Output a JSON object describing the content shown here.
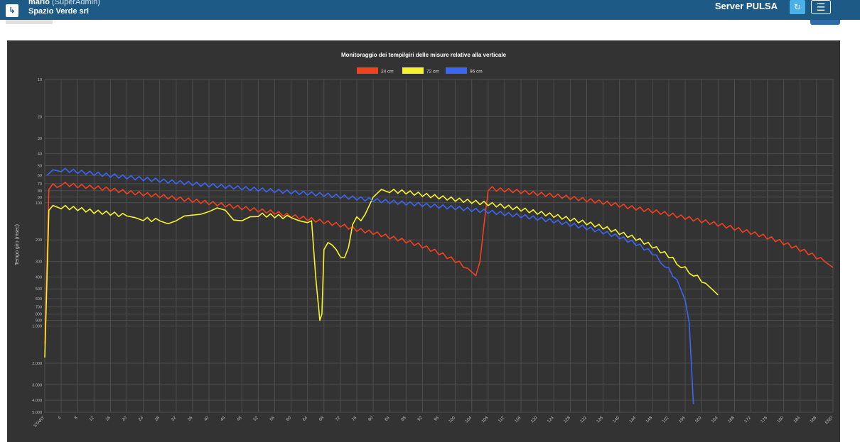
{
  "header": {
    "user_name": "mario",
    "user_role": "(SuperAdmin)",
    "company": "Spazio Verde srl",
    "server_label": "Server PULSA",
    "logout_icon": "logout-icon",
    "refresh_icon": "refresh-icon",
    "menu_icon": "hamburger-menu-icon",
    "bar_color": "#1e5a86",
    "accent_color": "#49b0e8"
  },
  "chart_data": {
    "type": "line",
    "title": "Monitoraggio dei tempi/giri delle misure relative alla verticale",
    "ylabel": "Tempo giro (msec)",
    "xlabel": "",
    "y_scale": "log",
    "y_reversed": true,
    "ylim": [
      10,
      5000
    ],
    "grid": true,
    "legend_position": "top-center",
    "y_ticks": [
      10,
      20,
      30,
      40,
      50,
      60,
      70,
      80,
      90,
      100,
      200,
      300,
      400,
      500,
      600,
      700,
      800,
      900,
      1000,
      2000,
      3000,
      4000,
      5000
    ],
    "y_tick_labels": [
      "10",
      "20",
      "30",
      "40",
      "50",
      "60",
      "70",
      "80",
      "90",
      "100",
      "200",
      "300",
      "400",
      "500",
      "600",
      "700",
      "800",
      "900",
      "1.000",
      "2.000",
      "3.000",
      "4.000",
      "5.000"
    ],
    "x_tick_labels": [
      "START",
      "4",
      "8",
      "12",
      "16",
      "20",
      "24",
      "28",
      "32",
      "36",
      "40",
      "44",
      "48",
      "52",
      "56",
      "60",
      "64",
      "68",
      "72",
      "76",
      "80",
      "84",
      "88",
      "92",
      "96",
      "100",
      "104",
      "108",
      "112",
      "116",
      "120",
      "124",
      "128",
      "132",
      "136",
      "140",
      "144",
      "148",
      "152",
      "156",
      "160",
      "164",
      "168",
      "172",
      "176",
      "180",
      "184",
      "188",
      "END"
    ],
    "xlim": [
      0,
      192
    ],
    "series": [
      {
        "name": "24 cm",
        "color": "#f0421e",
        "points": [
          [
            0,
            1400
          ],
          [
            1,
            78
          ],
          [
            2,
            70
          ],
          [
            3,
            75
          ],
          [
            4,
            70
          ],
          [
            8,
            73
          ],
          [
            12,
            75
          ],
          [
            16,
            78
          ],
          [
            20,
            82
          ],
          [
            24,
            85
          ],
          [
            28,
            88
          ],
          [
            32,
            92
          ],
          [
            36,
            96
          ],
          [
            40,
            100
          ],
          [
            44,
            105
          ],
          [
            48,
            110
          ],
          [
            52,
            115
          ],
          [
            56,
            120
          ],
          [
            60,
            128
          ],
          [
            64,
            135
          ],
          [
            68,
            143
          ],
          [
            72,
            152
          ],
          [
            76,
            165
          ],
          [
            80,
            175
          ],
          [
            84,
            190
          ],
          [
            88,
            205
          ],
          [
            92,
            225
          ],
          [
            96,
            255
          ],
          [
            100,
            295
          ],
          [
            103,
            340
          ],
          [
            105,
            390
          ],
          [
            106,
            300
          ],
          [
            107,
            150
          ],
          [
            108,
            80
          ],
          [
            109,
            74
          ],
          [
            110,
            78
          ],
          [
            114,
            80
          ],
          [
            118,
            83
          ],
          [
            122,
            86
          ],
          [
            126,
            89
          ],
          [
            130,
            93
          ],
          [
            134,
            97
          ],
          [
            138,
            102
          ],
          [
            142,
            108
          ],
          [
            146,
            114
          ],
          [
            150,
            120
          ],
          [
            154,
            128
          ],
          [
            158,
            136
          ],
          [
            162,
            145
          ],
          [
            166,
            155
          ],
          [
            170,
            168
          ],
          [
            174,
            182
          ],
          [
            178,
            200
          ],
          [
            182,
            225
          ],
          [
            186,
            255
          ],
          [
            190,
            300
          ],
          [
            192,
            335
          ]
        ]
      },
      {
        "name": "72 cm",
        "color": "#f5f22e",
        "points": [
          [
            0,
            1800
          ],
          [
            1,
            115
          ],
          [
            2,
            105
          ],
          [
            4,
            108
          ],
          [
            8,
            112
          ],
          [
            12,
            118
          ],
          [
            16,
            122
          ],
          [
            20,
            128
          ],
          [
            22,
            132
          ],
          [
            24,
            135
          ],
          [
            28,
            140
          ],
          [
            30,
            148
          ],
          [
            32,
            140
          ],
          [
            34,
            128
          ],
          [
            36,
            126
          ],
          [
            38,
            124
          ],
          [
            40,
            118
          ],
          [
            42,
            110
          ],
          [
            44,
            115
          ],
          [
            46,
            138
          ],
          [
            48,
            140
          ],
          [
            50,
            130
          ],
          [
            52,
            125
          ],
          [
            56,
            128
          ],
          [
            60,
            132
          ],
          [
            62,
            140
          ],
          [
            64,
            145
          ],
          [
            65,
            140
          ],
          [
            66,
            400
          ],
          [
            67,
            900
          ],
          [
            67.5,
            800
          ],
          [
            68,
            240
          ],
          [
            69,
            210
          ],
          [
            70,
            220
          ],
          [
            71,
            240
          ],
          [
            72,
            275
          ],
          [
            73,
            280
          ],
          [
            74,
            230
          ],
          [
            75,
            150
          ],
          [
            76,
            130
          ],
          [
            77,
            140
          ],
          [
            78,
            125
          ],
          [
            80,
            90
          ],
          [
            82,
            78
          ],
          [
            84,
            80
          ],
          [
            88,
            82
          ],
          [
            92,
            86
          ],
          [
            96,
            90
          ],
          [
            100,
            94
          ],
          [
            104,
            98
          ],
          [
            108,
            102
          ],
          [
            112,
            107
          ],
          [
            116,
            113
          ],
          [
            120,
            120
          ],
          [
            124,
            127
          ],
          [
            128,
            136
          ],
          [
            132,
            146
          ],
          [
            136,
            158
          ],
          [
            140,
            175
          ],
          [
            144,
            195
          ],
          [
            148,
            225
          ],
          [
            152,
            270
          ],
          [
            155,
            325
          ],
          [
            158,
            380
          ],
          [
            161,
            450
          ],
          [
            163,
            520
          ],
          [
            164,
            560
          ]
        ]
      },
      {
        "name": "96 cm",
        "color": "#3a66f2",
        "points": [
          [
            0.5,
            60
          ],
          [
            1,
            58
          ],
          [
            2,
            54
          ],
          [
            4,
            54
          ],
          [
            8,
            56
          ],
          [
            12,
            58
          ],
          [
            16,
            60
          ],
          [
            20,
            62
          ],
          [
            24,
            64
          ],
          [
            28,
            66
          ],
          [
            32,
            68
          ],
          [
            36,
            70
          ],
          [
            40,
            72
          ],
          [
            44,
            74
          ],
          [
            48,
            76
          ],
          [
            52,
            78
          ],
          [
            56,
            80
          ],
          [
            60,
            82
          ],
          [
            64,
            84
          ],
          [
            68,
            86
          ],
          [
            72,
            89
          ],
          [
            76,
            92
          ],
          [
            80,
            95
          ],
          [
            84,
            98
          ],
          [
            88,
            101
          ],
          [
            92,
            104
          ],
          [
            96,
            107
          ],
          [
            100,
            110
          ],
          [
            104,
            114
          ],
          [
            108,
            118
          ],
          [
            112,
            123
          ],
          [
            116,
            128
          ],
          [
            120,
            134
          ],
          [
            124,
            141
          ],
          [
            128,
            150
          ],
          [
            132,
            160
          ],
          [
            136,
            173
          ],
          [
            140,
            190
          ],
          [
            144,
            215
          ],
          [
            148,
            255
          ],
          [
            151,
            320
          ],
          [
            154,
            420
          ],
          [
            156,
            620
          ],
          [
            157,
            950
          ],
          [
            158,
            4300
          ]
        ]
      }
    ]
  }
}
